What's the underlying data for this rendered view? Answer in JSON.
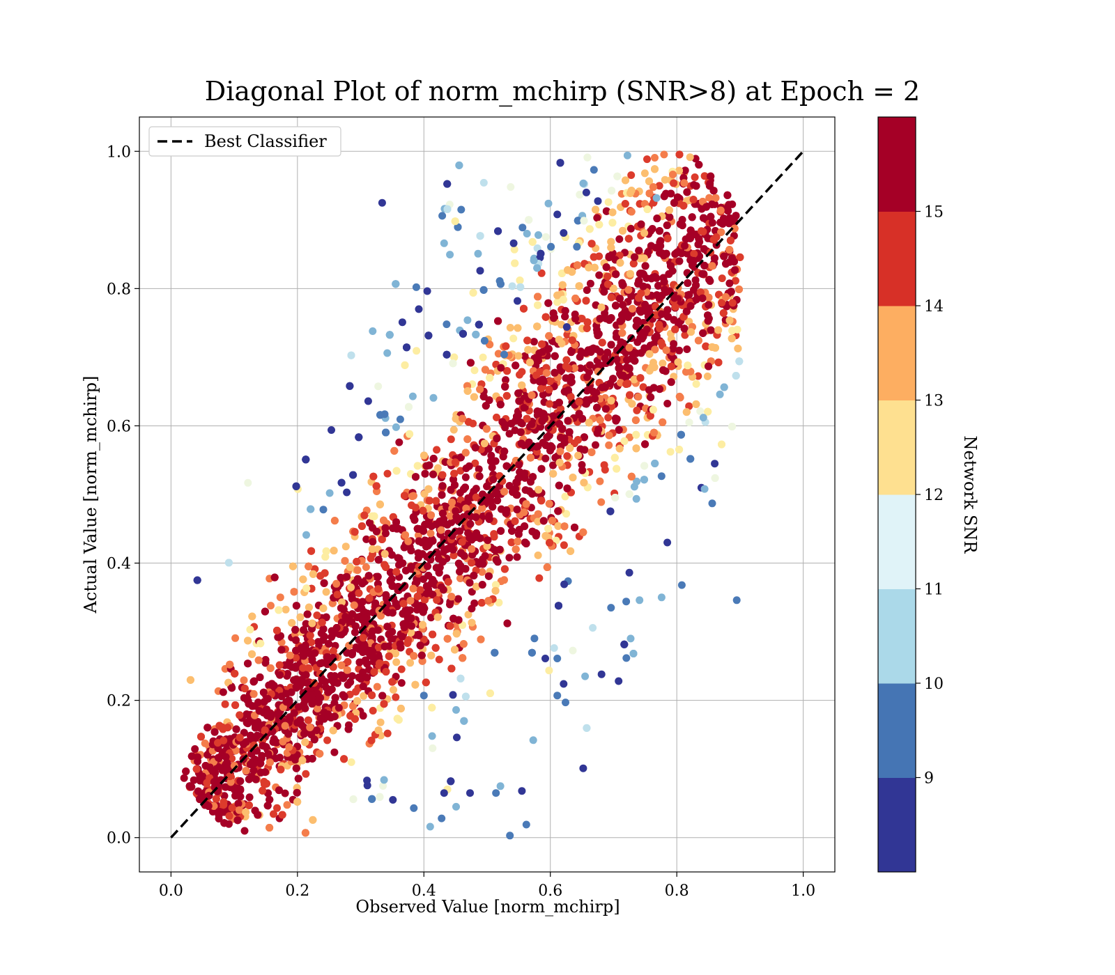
{
  "chart_data": {
    "type": "scatter",
    "title": "Diagonal Plot of norm_mchirp (SNR>8) at Epoch = 2",
    "xlabel": "Observed Value [norm_mchirp]",
    "ylabel": "Actual Value [norm_mchirp]",
    "xlim": [
      -0.05,
      1.05
    ],
    "ylim": [
      -0.05,
      1.05
    ],
    "xticks": [
      "0.0",
      "0.2",
      "0.4",
      "0.6",
      "0.8",
      "1.0"
    ],
    "yticks": [
      "0.0",
      "0.2",
      "0.4",
      "0.6",
      "0.8",
      "1.0"
    ],
    "grid": true,
    "legend": {
      "position": "top-left",
      "entries": [
        {
          "label": "Best Classifier",
          "style": "dashed",
          "color": "#000000"
        }
      ]
    },
    "reference_line": {
      "name": "Best Classifier",
      "x": [
        0.0,
        1.0
      ],
      "y": [
        0.0,
        1.0
      ],
      "style": "dashed",
      "color": "#000000"
    },
    "colorbar": {
      "label": "Network SNR",
      "range": [
        8,
        16
      ],
      "ticks": [
        "9",
        "10",
        "11",
        "12",
        "13",
        "14",
        "15"
      ],
      "bands": [
        "#313695",
        "#4575b4",
        "#74add1",
        "#abd9e9",
        "#e0f3f8",
        "#ffffbf",
        "#fee090",
        "#fdae61",
        "#f46d43",
        "#d73027",
        "#a50026"
      ],
      "colors": [
        "#313695",
        "#4a7ab7",
        "#80b4d5",
        "#bfe0ec",
        "#eef6e0",
        "#fdedA2",
        "#fcbe6f",
        "#f47d4b",
        "#dc3b2c",
        "#a50026"
      ]
    },
    "series": [
      {
        "points": [
          [
            0.334,
            0.925
          ],
          [
            0.459,
            0.915
          ],
          [
            0.432,
            0.866
          ],
          [
            0.489,
            0.826
          ],
          [
            0.388,
            0.802
          ],
          [
            0.319,
            0.738
          ],
          [
            0.366,
            0.751
          ],
          [
            0.436,
            0.748
          ],
          [
            0.342,
            0.706
          ],
          [
            0.392,
            0.77
          ],
          [
            0.556,
            0.889
          ],
          [
            0.563,
            0.88
          ],
          [
            0.542,
            0.866
          ],
          [
            0.669,
            0.973
          ],
          [
            0.574,
            0.841
          ],
          [
            0.657,
            0.94
          ],
          [
            0.527,
            0.704
          ],
          [
            0.469,
            0.754
          ],
          [
            0.621,
            0.881
          ],
          [
            0.601,
            0.861
          ],
          [
            0.251,
            0.502
          ],
          [
            0.278,
            0.503
          ],
          [
            0.241,
            0.478
          ],
          [
            0.214,
            0.441
          ],
          [
            0.312,
            0.636
          ],
          [
            0.338,
            0.617
          ],
          [
            0.356,
            0.598
          ],
          [
            0.652,
            0.101
          ],
          [
            0.536,
            0.003
          ],
          [
            0.573,
            0.142
          ],
          [
            0.708,
            0.228
          ],
          [
            0.624,
            0.197
          ],
          [
            0.727,
            0.29
          ],
          [
            0.785,
            0.43
          ],
          [
            0.808,
            0.368
          ],
          [
            0.776,
            0.35
          ],
          [
            0.86,
            0.545
          ],
          [
            0.856,
            0.487
          ],
          [
            0.844,
            0.508
          ],
          [
            0.621,
            0.224
          ],
          [
            0.611,
            0.261
          ],
          [
            0.842,
            0.612
          ],
          [
            0.725,
            0.386
          ],
          [
            0.72,
            0.344
          ],
          [
            0.741,
            0.346
          ],
          [
            0.555,
            0.068
          ],
          [
            0.562,
            0.019
          ],
          [
            0.451,
            0.045
          ],
          [
            0.473,
            0.065
          ],
          [
            0.514,
            0.065
          ],
          [
            0.521,
            0.075
          ],
          [
            0.592,
            0.261
          ],
          [
            0.611,
            0.207
          ],
          [
            0.655,
            0.235
          ],
          [
            0.681,
            0.238
          ],
          [
            0.696,
            0.335
          ],
          [
            0.451,
            0.186
          ],
          [
            0.452,
            0.146
          ],
          [
            0.4,
            0.207
          ],
          [
            0.337,
            0.084
          ],
          [
            0.351,
            0.055
          ],
          [
            0.384,
            0.043
          ],
          [
            0.413,
            0.148
          ],
          [
            0.432,
            0.065
          ],
          [
            0.428,
            0.028
          ],
          [
            0.41,
            0.016
          ],
          [
            0.446,
            0.208
          ],
          [
            0.429,
            0.906
          ],
          [
            0.581,
            0.878
          ],
          [
            0.626,
            0.744
          ],
          [
            0.52,
            0.811
          ],
          [
            0.768,
            0.932
          ],
          [
            0.611,
            0.908
          ],
          [
            0.642,
            0.861
          ],
          [
            0.597,
            0.924
          ],
          [
            0.548,
            0.782
          ],
          [
            0.496,
            0.724
          ]
        ]
      }
    ]
  }
}
